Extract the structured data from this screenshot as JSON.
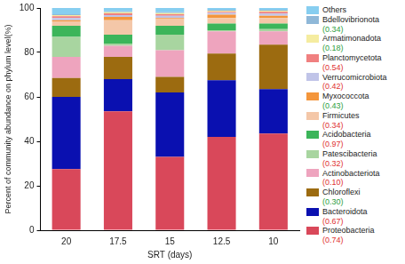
{
  "chart_data": {
    "type": "bar",
    "stacked": true,
    "x_label": "SRT (days)",
    "y_label": "Percent of community abundance on phylum level(%)",
    "categories": [
      "20",
      "17.5",
      "15",
      "12.5",
      "10"
    ],
    "ylim": [
      0,
      100
    ],
    "yticks": [
      0,
      20,
      40,
      60,
      80,
      100
    ],
    "grid": false,
    "legend": "right",
    "series": [
      {
        "name": "Proteobacteria",
        "color": "#d9485a",
        "values": [
          27.5,
          53.5,
          33,
          42,
          43.5
        ],
        "correlation": {
          "value": 0.74,
          "label": "(0.74)",
          "color": "#e03030"
        }
      },
      {
        "name": "Bacteroidota",
        "color": "#0a10b0",
        "values": [
          32.5,
          14.5,
          29,
          25.5,
          20
        ],
        "correlation": {
          "value": 0.67,
          "label": "(0.67)",
          "color": "#e03030"
        }
      },
      {
        "name": "Chloroflexi",
        "color": "#9c6b10",
        "values": [
          8.5,
          10,
          7,
          12,
          20
        ],
        "correlation": {
          "value": 0.3,
          "label": "(0.30)",
          "color": "#2e9e3e"
        }
      },
      {
        "name": "Actinobacteriota",
        "color": "#eea4be",
        "values": [
          9.5,
          5,
          12,
          10,
          6
        ],
        "correlation": {
          "value": 0.1,
          "label": "(0.10)",
          "color": "#e03030"
        }
      },
      {
        "name": "Patescibacteria",
        "color": "#a8d5a0",
        "values": [
          9,
          1,
          7,
          0.5,
          1
        ],
        "correlation": {
          "value": 0.32,
          "label": "(0.32)",
          "color": "#e03030"
        }
      },
      {
        "name": "Acidobacteria",
        "color": "#3cb55a",
        "values": [
          5,
          4,
          4,
          3,
          2.5
        ],
        "correlation": {
          "value": 0.97,
          "label": "(0.97)",
          "color": "#e03030"
        }
      },
      {
        "name": "Firmicutes",
        "color": "#f4c7a8",
        "values": [
          2,
          6.5,
          3,
          2.5,
          2.5
        ],
        "correlation": {
          "value": 0.34,
          "label": "(0.34)",
          "color": "#e03030"
        }
      },
      {
        "name": "Myxococcota",
        "color": "#f4963c",
        "values": [
          0.5,
          1.5,
          0.5,
          1.5,
          1
        ],
        "correlation": {
          "value": 0.43,
          "label": "(0.43)",
          "color": "#2e9e3e"
        }
      },
      {
        "name": "Verrucomicrobiota",
        "color": "#c0c4e8",
        "values": [
          1,
          0.8,
          1,
          0.8,
          1
        ],
        "correlation": {
          "value": 0.42,
          "label": "(0.42)",
          "color": "#e03030"
        }
      },
      {
        "name": "Planctomycetota",
        "color": "#f08080",
        "values": [
          0.8,
          0.8,
          0.7,
          0.5,
          0.8
        ],
        "correlation": {
          "value": 0.54,
          "label": "(0.54)",
          "color": "#e03030"
        }
      },
      {
        "name": "Armatimonadota",
        "color": "#f5eca0",
        "values": [
          0.5,
          0.5,
          0.5,
          0.5,
          0.5
        ],
        "correlation": {
          "value": 0.18,
          "label": "(0.18)",
          "color": "#2e9e3e"
        }
      },
      {
        "name": "Bdellovibrionota",
        "color": "#8fb8d8",
        "values": [
          0.4,
          0.4,
          0.4,
          0.4,
          0.4
        ],
        "correlation": {
          "value": 0.34,
          "label": "(0.34)",
          "color": "#2e9e3e"
        }
      },
      {
        "name": "Others",
        "color": "#87cef0",
        "values": [
          2.8,
          1.5,
          1.9,
          0.8,
          0.8
        ]
      }
    ]
  }
}
